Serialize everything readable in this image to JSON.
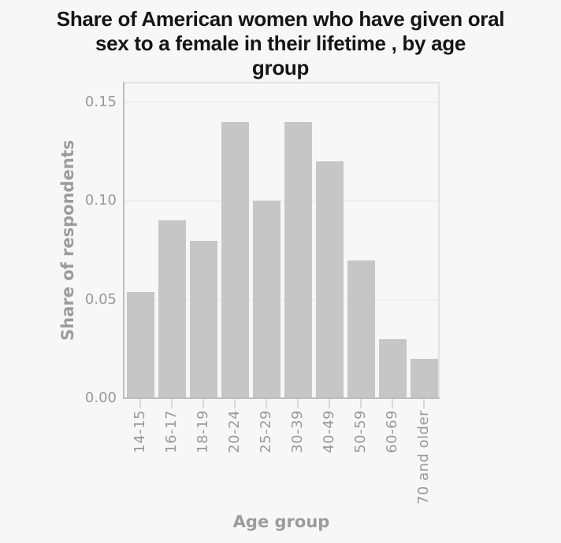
{
  "page": {
    "background": "#f7f7f7"
  },
  "chart_data": {
    "type": "bar",
    "title": "Share of American women who have given oral sex to a female in their lifetime , by age group",
    "title_lines": [
      "Share of American women who have given oral",
      "sex to a female in their lifetime , by age",
      "group"
    ],
    "categories": [
      "14-15",
      "16-17",
      "18-19",
      "20-24",
      "25-29",
      "30-39",
      "40-49",
      "50-59",
      "60-69",
      "70 and older"
    ],
    "values": [
      0.054,
      0.09,
      0.08,
      0.14,
      0.1,
      0.14,
      0.12,
      0.07,
      0.03,
      0.02
    ],
    "xlabel": "Age group",
    "ylabel": "Share of respondents",
    "ylim": [
      0,
      0.16
    ],
    "yticks": [
      0,
      0.05,
      0.1,
      0.15
    ],
    "ytick_labels": [
      "0.00",
      "0.05",
      "0.10",
      "0.15"
    ],
    "grid": true,
    "legend": false,
    "colors": {
      "bar": "#c6c6c6",
      "axis_line": "#bdbdbd",
      "panel_border": "#e2e2e2",
      "gridline": "#efefef",
      "tick_mark": "#d9d9d9",
      "tick_text": "#999999",
      "axis_title_text": "#9c9c9c",
      "title_text": "#151515",
      "background": "#f7f7f7"
    }
  }
}
